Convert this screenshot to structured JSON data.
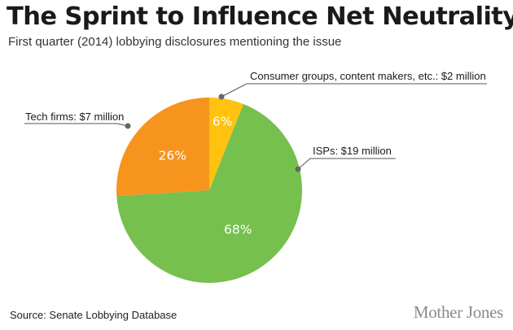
{
  "header": {
    "title": "The Sprint to Influence Net Neutrality",
    "subtitle": "First quarter (2014) lobbying disclosures mentioning the issue"
  },
  "footer": {
    "source": "Source: Senate Lobbying Database",
    "brand": "Mother Jones"
  },
  "chart_data": {
    "type": "pie",
    "title": "The Sprint to Influence Net Neutrality",
    "subtitle": "First quarter (2014) lobbying disclosures mentioning the issue",
    "start_angle_deg": 0,
    "direction": "clockwise",
    "slices": [
      {
        "label": "Consumer groups, content makers, etc.: $2 million",
        "value": 6,
        "pct_label": "6%",
        "amount_millions": 2,
        "color": "#FFC20E"
      },
      {
        "label": "ISPs: $19 million",
        "value": 68,
        "pct_label": "68%",
        "amount_millions": 19,
        "color": "#76C04E"
      },
      {
        "label": "Tech firms: $7 million",
        "value": 26,
        "pct_label": "26%",
        "amount_millions": 7,
        "color": "#F7941D"
      }
    ]
  }
}
